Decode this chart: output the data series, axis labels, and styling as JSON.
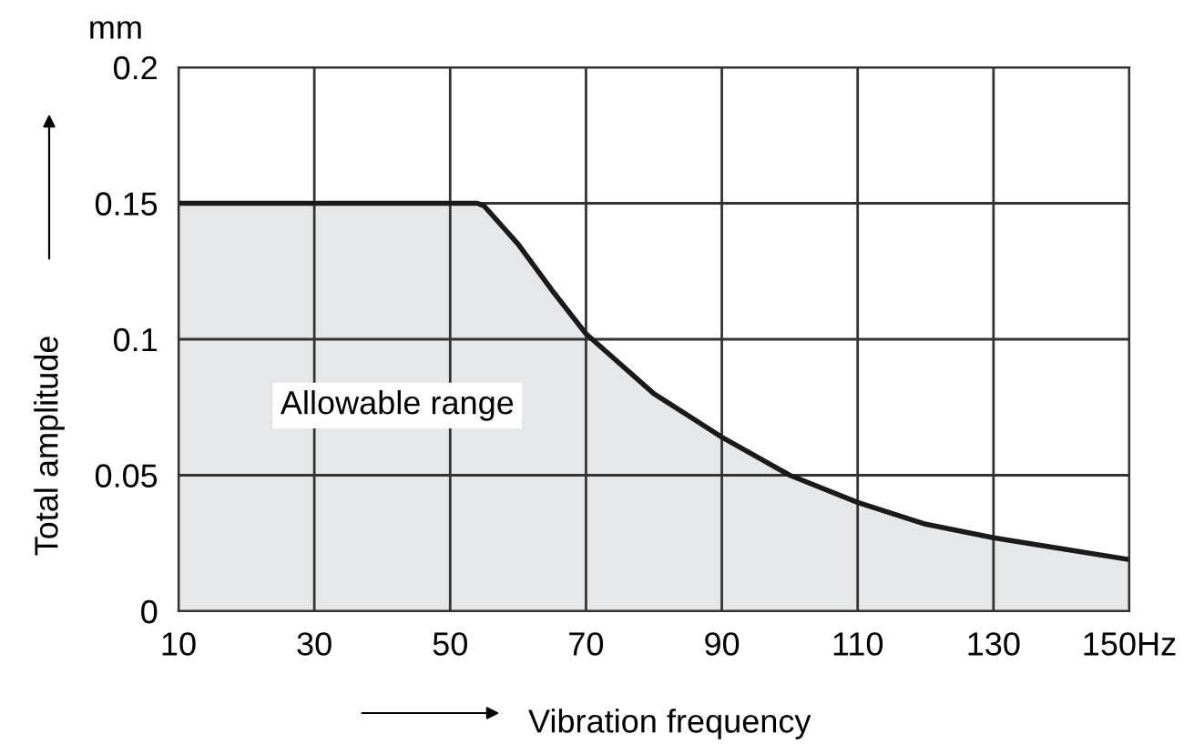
{
  "chart_data": {
    "type": "area",
    "xlabel": "Vibration frequency",
    "ylabel": "Total amplitude",
    "annotations": [
      "mm",
      "Allowable range"
    ],
    "x": [
      10,
      54,
      55,
      60,
      65,
      70,
      80,
      90,
      100,
      110,
      120,
      130,
      140,
      150
    ],
    "series": [
      {
        "color": "#1a1a1a",
        "values": [
          0.15,
          0.15,
          0.149,
          0.135,
          0.118,
          0.102,
          0.08,
          0.064,
          0.05,
          0.04,
          0.032,
          0.027,
          0.023,
          0.019
        ]
      }
    ],
    "xlim": [
      10,
      150
    ],
    "ylim": [
      0,
      0.2
    ],
    "xticks": [
      10,
      30,
      50,
      70,
      90,
      110,
      130,
      {
        "value": 150,
        "label": "150Hz"
      }
    ],
    "yticks": [
      0,
      0.05,
      0.1,
      0.15,
      0.2
    ],
    "grid": true,
    "legend": false
  }
}
